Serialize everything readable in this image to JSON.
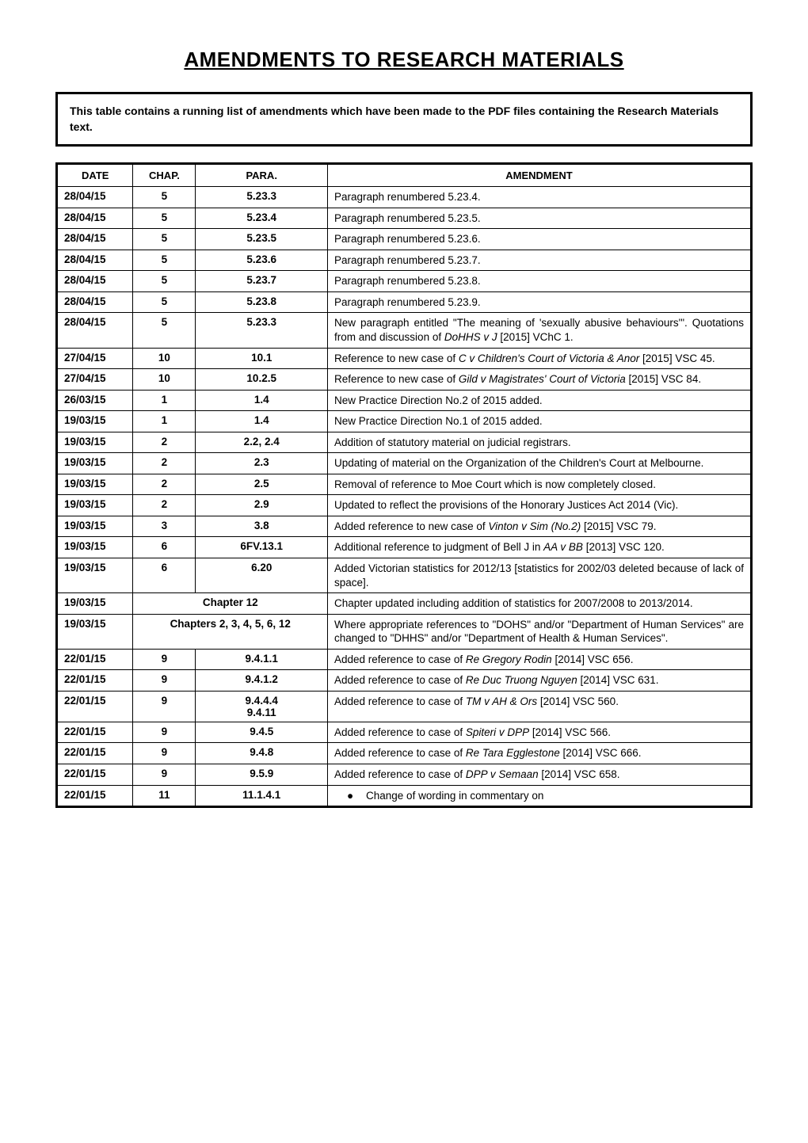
{
  "title": "AMENDMENTS TO RESEARCH MATERIALS",
  "intro": "This table contains a running list of amendments which have been made to the PDF files containing the Research Materials text.",
  "headers": {
    "date": "DATE",
    "chap": "CHAP.",
    "para": "PARA.",
    "amendment": "AMENDMENT"
  },
  "rows": [
    {
      "date": "28/04/15",
      "chap": "5",
      "para": "5.23.3",
      "amendment": "Paragraph renumbered 5.23.4."
    },
    {
      "date": "28/04/15",
      "chap": "5",
      "para": "5.23.4",
      "amendment": "Paragraph renumbered 5.23.5."
    },
    {
      "date": "28/04/15",
      "chap": "5",
      "para": "5.23.5",
      "amendment": "Paragraph renumbered 5.23.6."
    },
    {
      "date": "28/04/15",
      "chap": "5",
      "para": "5.23.6",
      "amendment": "Paragraph renumbered 5.23.7."
    },
    {
      "date": "28/04/15",
      "chap": "5",
      "para": "5.23.7",
      "amendment": "Paragraph renumbered 5.23.8."
    },
    {
      "date": "28/04/15",
      "chap": "5",
      "para": "5.23.8",
      "amendment": "Paragraph renumbered 5.23.9."
    },
    {
      "date": "28/04/15",
      "chap": "5",
      "para": "5.23.3",
      "amendment": "New paragraph entitled \"The meaning of 'sexually abusive behaviours'\". Quotations from and discussion of <i>DoHHS v J</i> [2015] VChC 1."
    },
    {
      "date": "27/04/15",
      "chap": "10",
      "para": "10.1",
      "amendment": "Reference to new case of <i>C v Children's Court of Victoria & Anor</i> [2015] VSC 45."
    },
    {
      "date": "27/04/15",
      "chap": "10",
      "para": "10.2.5",
      "amendment": "Reference to new case of <i>Gild v Magistrates' Court of Victoria</i> [2015] VSC 84."
    },
    {
      "date": "26/03/15",
      "chap": "1",
      "para": "1.4",
      "amendment": "New Practice Direction No.2 of 2015 added."
    },
    {
      "date": "19/03/15",
      "chap": "1",
      "para": "1.4",
      "amendment": "New Practice Direction No.1 of 2015 added."
    },
    {
      "date": "19/03/15",
      "chap": "2",
      "para": "2.2, 2.4",
      "amendment": "Addition of statutory material on judicial registrars."
    },
    {
      "date": "19/03/15",
      "chap": "2",
      "para": "2.3",
      "amendment": "Updating of material on the Organization of the Children's Court at Melbourne."
    },
    {
      "date": "19/03/15",
      "chap": "2",
      "para": "2.5",
      "amendment": "Removal of reference to Moe Court which is now completely closed."
    },
    {
      "date": "19/03/15",
      "chap": "2",
      "para": "2.9",
      "amendment": "Updated to reflect the provisions of the Honorary Justices Act 2014 (Vic)."
    },
    {
      "date": "19/03/15",
      "chap": "3",
      "para": "3.8",
      "amendment": "Added reference to new case of <i>Vinton v Sim (No.2)</i> [2015] VSC 79."
    },
    {
      "date": "19/03/15",
      "chap": "6",
      "para": "6FV.13.1",
      "amendment": "Additional reference to judgment of Bell J in <i>AA v BB</i> [2013] VSC 120."
    },
    {
      "date": "19/03/15",
      "chap": "6",
      "para": "6.20",
      "amendment": "Added Victorian statistics for 2012/13 [statistics for 2002/03 deleted because of lack of space]."
    },
    {
      "date": "19/03/15",
      "chap": "",
      "para": "Chapter 12",
      "colspan": true,
      "amendment": "Chapter updated including addition of statistics for 2007/2008 to 2013/2014."
    },
    {
      "date": "19/03/15",
      "chap": "",
      "para": "Chapters 2, 3, 4, 5, 6, 12",
      "colspan": true,
      "amendment": "Where appropriate references to \"DOHS\" and/or \"Department of Human Services\" are changed to \"DHHS\" and/or \"Department of Health & Human Services\"."
    },
    {
      "date": "22/01/15",
      "chap": "9",
      "para": "9.4.1.1",
      "amendment": "Added reference to case of <i>Re Gregory Rodin</i> [2014] VSC 656."
    },
    {
      "date": "22/01/15",
      "chap": "9",
      "para": "9.4.1.2",
      "amendment": "Added reference to case of <i>Re Duc Truong Nguyen</i> [2014] VSC 631."
    },
    {
      "date": "22/01/15",
      "chap": "9",
      "para": "9.4.4.4<br>9.4.11",
      "amendment": "Added reference to case of <i>TM v AH & Ors</i> [2014] VSC 560."
    },
    {
      "date": "22/01/15",
      "chap": "9",
      "para": "9.4.5",
      "amendment": "Added reference to case of  <i>Spiteri v DPP</i> [2014] VSC 566."
    },
    {
      "date": "22/01/15",
      "chap": "9",
      "para": "9.4.8",
      "amendment": "Added reference to case of <i>Re Tara Egglestone</i> [2014] VSC 666."
    },
    {
      "date": "22/01/15",
      "chap": "9",
      "para": "9.5.9",
      "amendment": "Added reference to case of <i>DPP v Semaan</i> [2014] VSC 658."
    },
    {
      "date": "22/01/15",
      "chap": "11",
      "para": "11.1.4.1",
      "amendment": "<span class='bullet'>●</span>Change of wording in commentary on"
    }
  ],
  "colors": {
    "background": "#ffffff",
    "text": "#000000",
    "border": "#000000"
  },
  "typography": {
    "title_fontsize": 26,
    "intro_fontsize": 14,
    "header_fontsize": 13,
    "cell_fontsize": 13.5
  }
}
